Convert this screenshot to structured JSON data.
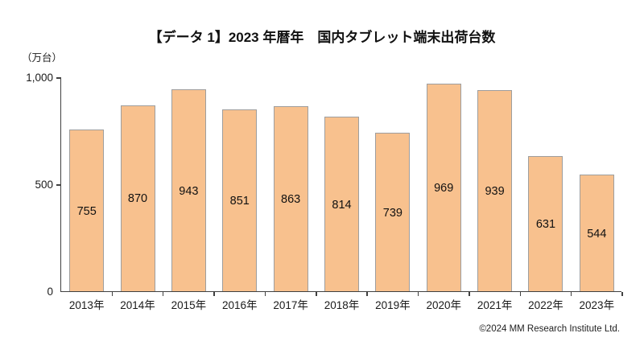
{
  "page": {
    "title": "【データ 1】2023 年暦年　国内タブレット端末出荷台数",
    "unit_label": "（万台）",
    "footer_credit": "©2024  MM Research Institute Ltd."
  },
  "chart_data": {
    "type": "bar",
    "title": "【データ 1】2023 年暦年　国内タブレット端末出荷台数",
    "categories": [
      "2013年",
      "2014年",
      "2015年",
      "2016年",
      "2017年",
      "2018年",
      "2019年",
      "2020年",
      "2021年",
      "2022年",
      "2023年"
    ],
    "values": [
      755,
      870,
      943,
      851,
      863,
      814,
      739,
      969,
      939,
      631,
      544
    ],
    "unit": "万台",
    "xlabel": "",
    "ylabel": "（万台）",
    "ylim": [
      0,
      1000
    ],
    "yticks": [
      0,
      500,
      1000
    ],
    "ytick_labels": [
      "0",
      "500",
      "1,000"
    ],
    "grid": false,
    "legend": "none",
    "data_labels": "inside-center",
    "colors": {
      "bar_fill": "#F8C18E",
      "bar_border": "#9E9E9E",
      "axis": "#404040",
      "text": "#1A1A1A"
    }
  }
}
